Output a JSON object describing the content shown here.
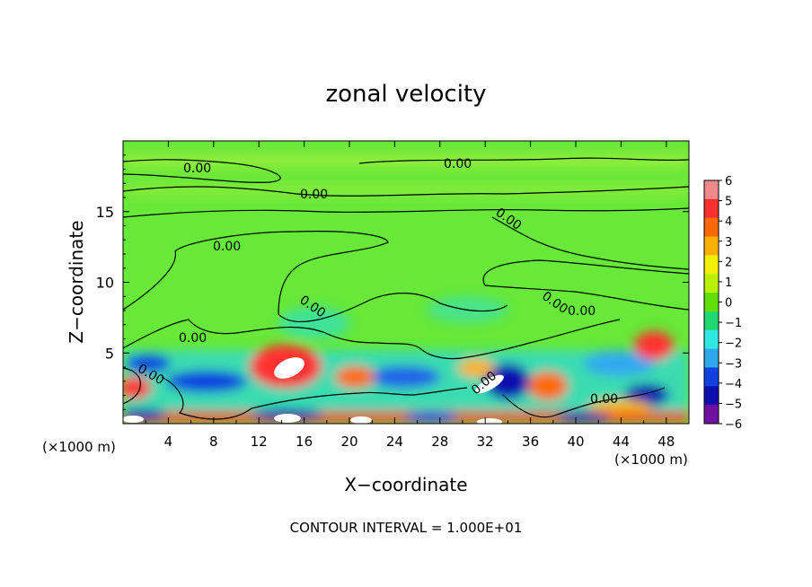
{
  "chart_data": {
    "type": "heatmap",
    "title": "zonal velocity",
    "xlabel": "X−coordinate",
    "ylabel": "Z−coordinate",
    "x_unit_left": "(×1000 m)",
    "x_unit_right": "(×1000 m)",
    "xlim": [
      0,
      50
    ],
    "ylim": [
      0,
      20
    ],
    "xticks": [
      4,
      8,
      12,
      16,
      20,
      24,
      28,
      32,
      36,
      40,
      44,
      48
    ],
    "yticks": [
      5,
      10,
      15
    ],
    "footer": "CONTOUR INTERVAL = 1.000E+01",
    "colorbar": {
      "min": -6,
      "max": 6,
      "labels": [
        "6",
        "5",
        "4",
        "3",
        "2",
        "1",
        "0",
        "−1",
        "−2",
        "−3",
        "−4",
        "−5",
        "−6"
      ],
      "colors": [
        "#f08a8a",
        "#ff3030",
        "#ff6a00",
        "#ffb000",
        "#f0f000",
        "#b8f000",
        "#60e000",
        "#20d870",
        "#30e8e0",
        "#30a8f0",
        "#1040e0",
        "#1010b0",
        "#7010a0"
      ]
    },
    "contour_label": "0.00",
    "field_background": "#68e838"
  }
}
